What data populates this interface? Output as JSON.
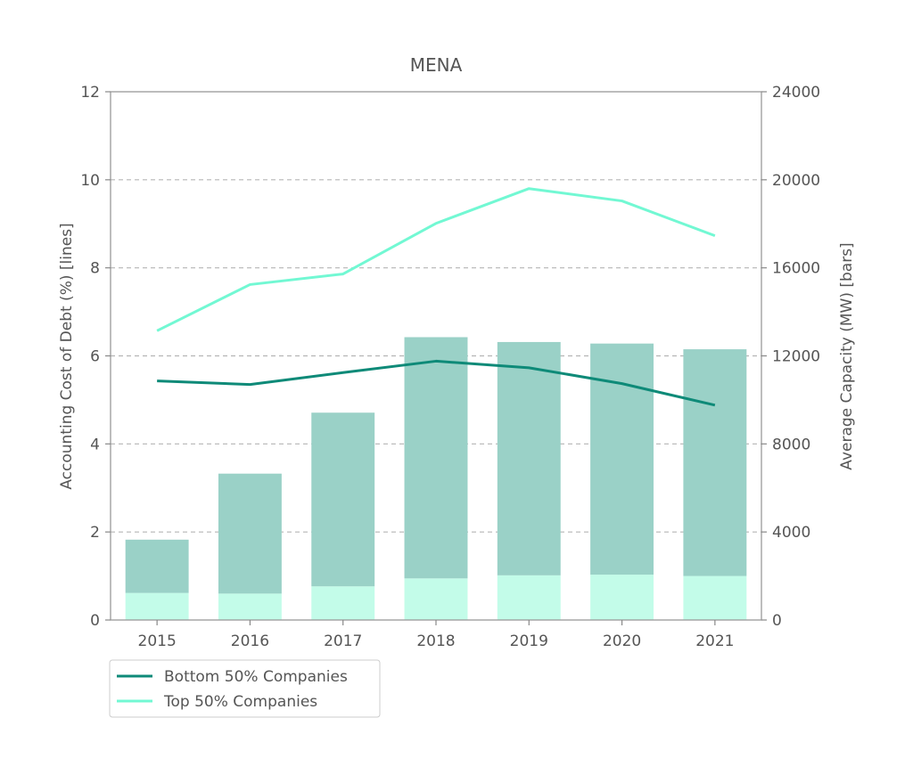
{
  "chart_data": {
    "type": "bar",
    "title": "MENA",
    "categories": [
      "2015",
      "2016",
      "2017",
      "2018",
      "2019",
      "2020",
      "2021"
    ],
    "y_left": {
      "label": "Accounting Cost of Debt (%)  [lines]",
      "range": [
        0,
        12
      ],
      "ticks": [
        "0",
        "2",
        "4",
        "6",
        "8",
        "10",
        "12"
      ]
    },
    "y_right": {
      "label": "Average Capacity (MW) [bars]",
      "range": [
        0,
        24000
      ],
      "ticks": [
        "0",
        "4000",
        "8000",
        "12000",
        "16000",
        "20000",
        "24000"
      ]
    },
    "grid": "horizontal dashed",
    "bar_series": [
      {
        "values": [
          1230,
          1200,
          1530,
          1890,
          2030,
          2060,
          2000
        ],
        "color": "#c3fce9",
        "axis": "right"
      },
      {
        "values": [
          2420,
          5450,
          7890,
          10960,
          10600,
          10500,
          10300
        ],
        "color": "#9ad1c7",
        "axis": "right"
      }
    ],
    "line_series": [
      {
        "name": "Bottom 50% Companies",
        "values": [
          5.43,
          5.35,
          5.62,
          5.88,
          5.73,
          5.37,
          4.88
        ],
        "color": "#0e8a78",
        "axis": "left"
      },
      {
        "name": "Top 50% Companies",
        "values": [
          6.57,
          7.62,
          7.86,
          9.01,
          9.8,
          9.52,
          8.73
        ],
        "color": "#72f8d3",
        "axis": "left"
      }
    ],
    "legend": {
      "placement": "bottom-left, below plot",
      "items": [
        {
          "label": "Bottom 50% Companies",
          "color": "#0e8a78"
        },
        {
          "label": "Top 50% Companies",
          "color": "#72f8d3"
        }
      ]
    }
  }
}
